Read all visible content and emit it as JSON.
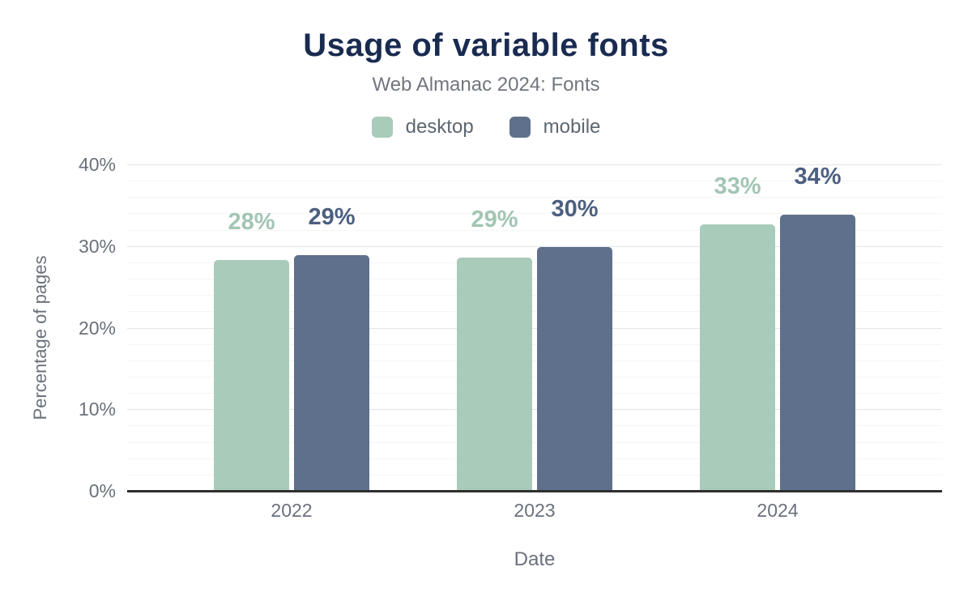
{
  "title": "Usage of variable fonts",
  "subtitle": "Web Almanac 2024: Fonts",
  "chart_data": {
    "type": "bar",
    "title": "Usage of variable fonts",
    "subtitle": "Web Almanac 2024: Fonts",
    "categories": [
      "2022",
      "2023",
      "2024"
    ],
    "series": [
      {
        "name": "desktop",
        "color": "#a9cbba",
        "label_color": "#a2c5b3",
        "values": [
          28.4,
          28.7,
          32.8
        ],
        "labels": [
          "28%",
          "29%",
          "33%"
        ]
      },
      {
        "name": "mobile",
        "color": "#5e708b",
        "label_color": "#4c5f80",
        "values": [
          29.0,
          30.0,
          33.9
        ],
        "labels": [
          "29%",
          "30%",
          "34%"
        ]
      }
    ],
    "xlabel": "Date",
    "ylabel": "Percentage of pages",
    "ylim": [
      0,
      40
    ],
    "yticks": [
      "0%",
      "10%",
      "20%",
      "30%",
      "40%"
    ],
    "ytick_values": [
      0,
      10,
      20,
      30,
      40
    ],
    "minor_grid_step": 2,
    "major_grid_step": 10,
    "grid": true,
    "legend_position": "top"
  },
  "colors": {
    "title": "#1a2b50",
    "subtitle_text": "#71767e",
    "axis_text": "#6a717b",
    "legend_text": "#5d6670",
    "major_grid": "#e2e5e5",
    "minor_grid": "#f4f5f5",
    "axis_line": "#2f2f2f",
    "background": "#ffffff"
  }
}
